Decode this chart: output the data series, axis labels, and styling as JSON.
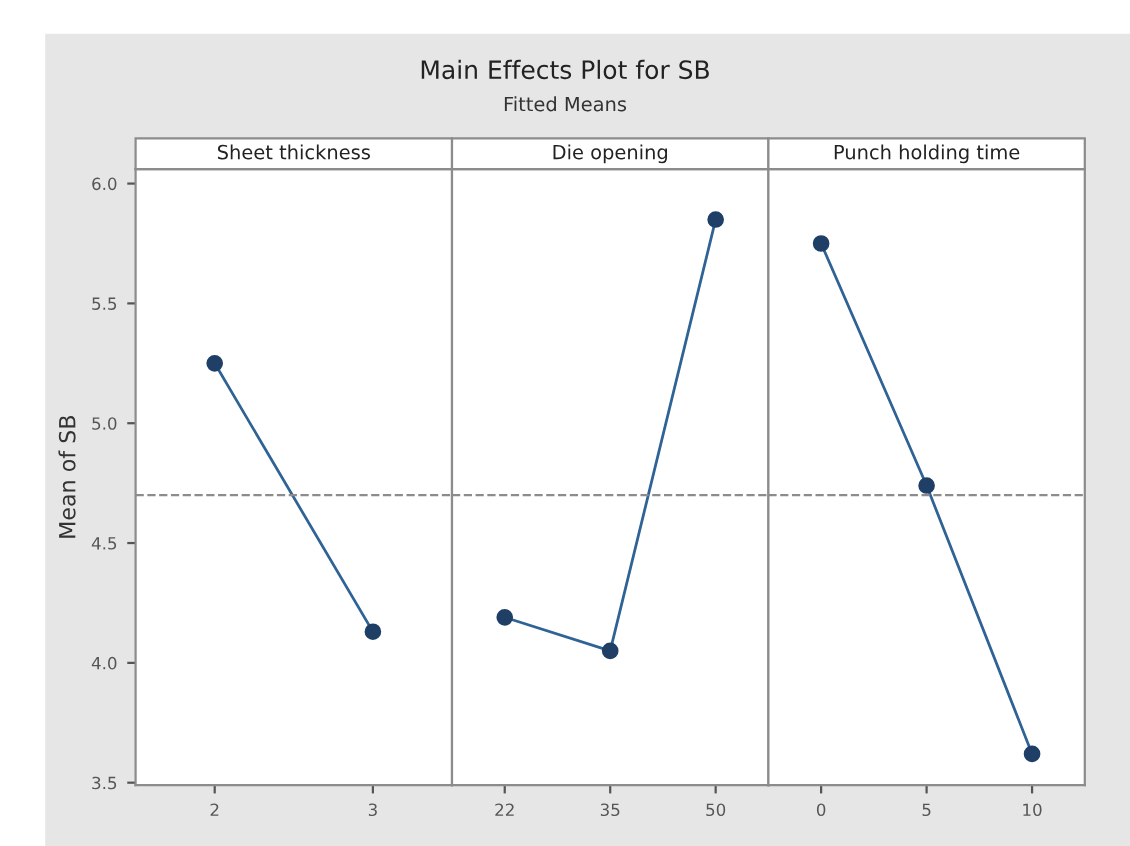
{
  "chart_data": [
    {
      "type": "line",
      "title": "Sheet thickness",
      "ylabel": "Mean of SB",
      "annotations": [
        "Main Effects Plot for SB",
        "Fitted Means"
      ],
      "categories": [
        "2",
        "3"
      ],
      "series": [
        {
          "color": "#2f6395",
          "values": [
            5.25,
            4.13
          ]
        }
      ],
      "ylim": [
        3.49,
        6.06
      ],
      "yticks": [
        3.5,
        {
          "value": 4,
          "label": "4.0"
        },
        4.5,
        {
          "value": 5,
          "label": "5.0"
        },
        5.5,
        {
          "value": 6,
          "label": "6.0"
        }
      ],
      "marker": "circle",
      "line_style": "solid",
      "grid": false,
      "legend": false,
      "ref_lines": [
        {
          "axis": "y",
          "value": 4.7,
          "color": "#8c8c8c",
          "line_style": "dashed"
        }
      ]
    },
    {
      "type": "line",
      "title": "Die opening",
      "categories": [
        "22",
        "35",
        "50"
      ],
      "series": [
        {
          "color": "#2f6395",
          "values": [
            4.19,
            4.05,
            5.85
          ]
        }
      ],
      "ylim": [
        3.49,
        6.06
      ],
      "tick_labels": "x",
      "marker": "circle",
      "line_style": "solid",
      "grid": false,
      "legend": false,
      "ref_lines": [
        {
          "axis": "y",
          "value": 4.7,
          "color": "#8c8c8c",
          "line_style": "dashed"
        }
      ]
    },
    {
      "type": "line",
      "title": "Punch holding time",
      "categories": [
        "0",
        "5",
        "10"
      ],
      "series": [
        {
          "color": "#2f6395",
          "values": [
            5.75,
            4.74,
            3.62
          ]
        }
      ],
      "ylim": [
        3.49,
        6.06
      ],
      "tick_labels": "x",
      "marker": "circle",
      "line_style": "solid",
      "grid": false,
      "legend": false,
      "ref_lines": [
        {
          "axis": "y",
          "value": 4.7,
          "color": "#8c8c8c",
          "line_style": "dashed"
        }
      ]
    }
  ]
}
